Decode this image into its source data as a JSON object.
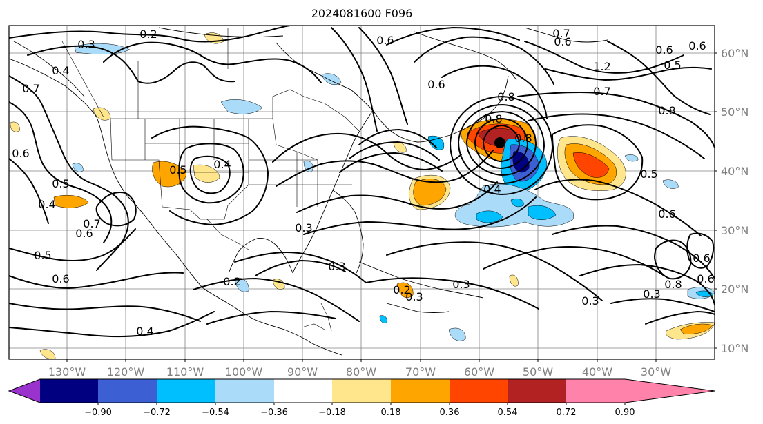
{
  "title": "2024081600 F096",
  "map": {
    "lat_labels": [
      "60°N",
      "50°N",
      "40°N",
      "30°N",
      "20°N",
      "10°N"
    ],
    "lon_labels": [
      "130°W",
      "120°W",
      "110°W",
      "100°W",
      "90°W",
      "80°W",
      "70°W",
      "60°W",
      "50°W",
      "40°W",
      "30°W"
    ],
    "contour_labels": [
      "0.3",
      "0.2",
      "0.6",
      "0.8",
      "0.7",
      "0.6",
      "1.2",
      "0.5",
      "0.6",
      "0.7",
      "0.8",
      "0.4",
      "0.5",
      "0.6",
      "0.7",
      "0.6",
      "0.5",
      "0.6",
      "0.4",
      "0.5",
      "0.4",
      "0.6",
      "0.8",
      "0.4",
      "0.5",
      "0.6",
      "0.7",
      "0.8",
      "0.3",
      "0.3",
      "0.3",
      "0.2",
      "0.3",
      "0.2",
      "0.6",
      "0.4",
      "0.6",
      "0.8",
      "0.3",
      "0.3",
      "0.6"
    ]
  },
  "colorbar": {
    "ticks": [
      "−0.90",
      "−0.72",
      "−0.54",
      "−0.36",
      "−0.18",
      "0.18",
      "0.36",
      "0.54",
      "0.72",
      "0.90"
    ],
    "colors": [
      "#9a32cd",
      "#000080",
      "#3d5fd4",
      "#00bfff",
      "#aadcfa",
      "#ffffff",
      "#ffe68c",
      "#ffa500",
      "#ff4500",
      "#b22222",
      "#ff82ab"
    ]
  }
}
